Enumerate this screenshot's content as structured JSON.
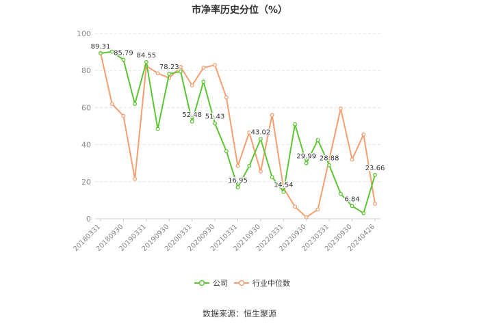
{
  "chart_data": {
    "type": "line",
    "title": "市净率历史分位（%）",
    "ylim": [
      0,
      100
    ],
    "yticks": [
      0,
      20,
      40,
      60,
      80,
      100
    ],
    "x_tick_labels": [
      "20180331",
      "20180930",
      "20190331",
      "20190930",
      "20200331",
      "20200930",
      "20210331",
      "20210930",
      "20220331",
      "20220930",
      "20230331",
      "20230930",
      "20240426"
    ],
    "grid": "horizontal dashed",
    "legend_position": "bottom-center",
    "series": [
      {
        "name": "公司",
        "color": "#5cc531",
        "values": [
          89.31,
          90.2,
          85.79,
          62.0,
          84.55,
          48.5,
          78.23,
          79.5,
          52.48,
          74.0,
          51.43,
          36.5,
          16.95,
          28.5,
          43.02,
          22.5,
          14.54,
          51.0,
          29.99,
          42.5,
          28.88,
          13.5,
          6.84,
          3.0,
          23.66
        ]
      },
      {
        "name": "行业中位数",
        "color": "#f79e71",
        "values": [
          89.5,
          62.0,
          55.5,
          21.5,
          82.5,
          78.5,
          76.0,
          82.0,
          72.0,
          81.5,
          83.0,
          65.5,
          28.5,
          46.5,
          25.5,
          56.0,
          16.5,
          6.5,
          0.8,
          5.0,
          32.0,
          59.5,
          32.0,
          45.5,
          8.0
        ]
      }
    ],
    "data_labels": [
      {
        "index": 0,
        "text": "89.31"
      },
      {
        "index": 2,
        "text": "85.79"
      },
      {
        "index": 4,
        "text": "84.55"
      },
      {
        "index": 6,
        "text": "78.23"
      },
      {
        "index": 8,
        "text": "52.48"
      },
      {
        "index": 10,
        "text": "51.43"
      },
      {
        "index": 12,
        "text": "16.95"
      },
      {
        "index": 14,
        "text": "43.02"
      },
      {
        "index": 16,
        "text": "14.54"
      },
      {
        "index": 18,
        "text": "29.99"
      },
      {
        "index": 20,
        "text": "28.88"
      },
      {
        "index": 22,
        "text": "6.84"
      },
      {
        "index": 24,
        "text": "23.66"
      }
    ]
  },
  "source": "数据来源：恒生聚源"
}
